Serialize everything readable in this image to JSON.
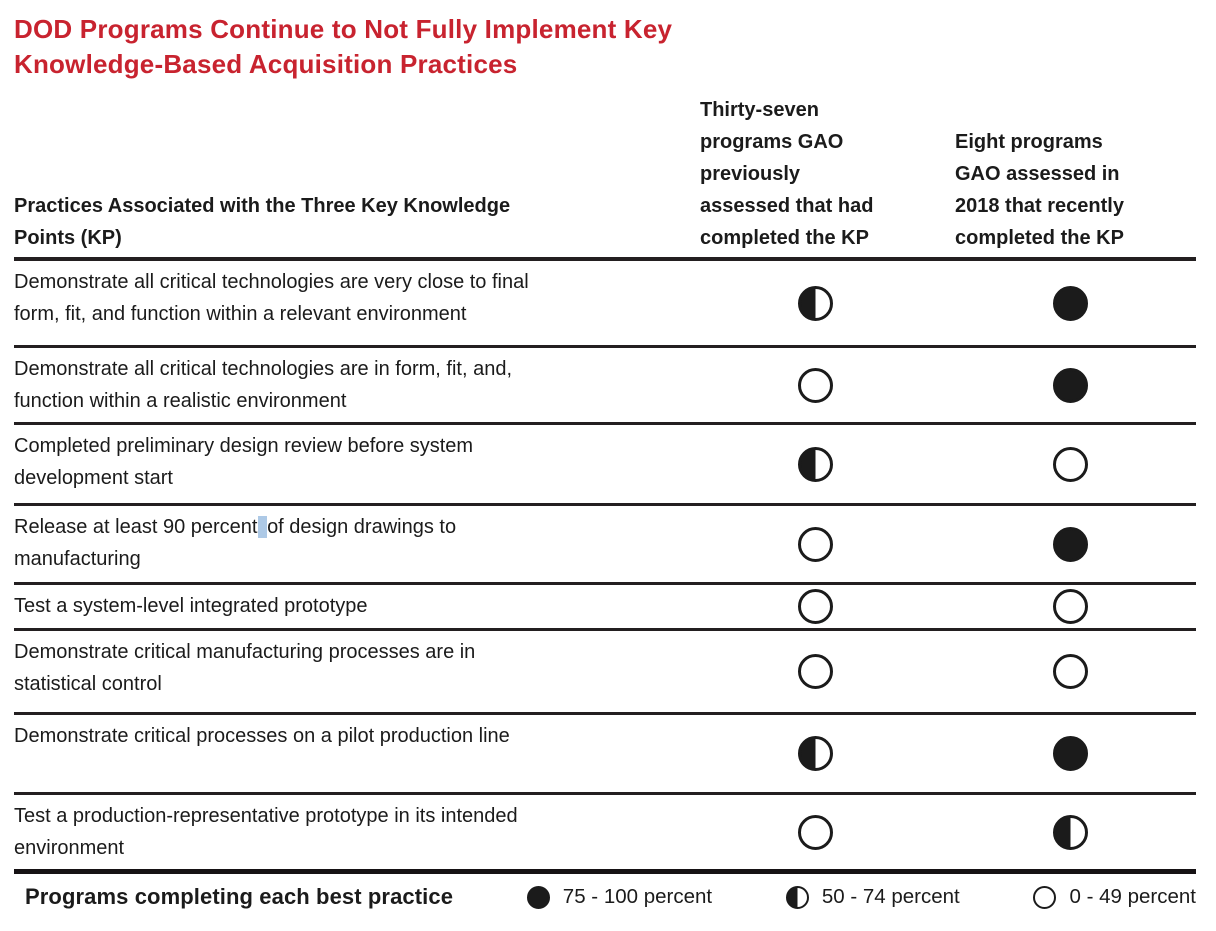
{
  "colors": {
    "title_red": "#c8232f",
    "ink": "#1b1b1b",
    "rule": "#231f20",
    "selection_highlight": "#adc9e6"
  },
  "title": "DOD Programs Continue to Not Fully Implement Key\nKnowledge-Based Acquisition Practices",
  "table": {
    "headers": {
      "practices": "Practices Associated with the Three Key Knowledge\nPoints (KP)",
      "previously_assessed": "Thirty-seven\nprograms GAO\npreviously\nassessed that had\ncompleted the KP",
      "assessed_2018": "Eight programs\nGAO assessed in\n2018 that recently\ncompleted the KP"
    },
    "symbol_legend_names": {
      "full": "filled-circle",
      "half": "half-filled-circle",
      "empty": "empty-circle"
    },
    "rows": [
      {
        "practice": "Demonstrate all critical technologies are very close to final\nform, fit, and function within a relevant environment",
        "previously_assessed": "half",
        "assessed_2018": "full"
      },
      {
        "practice": "Demonstrate all critical technologies are in form, fit, and,\nfunction within a realistic environment",
        "previously_assessed": "empty",
        "assessed_2018": "full"
      },
      {
        "practice": "Completed preliminary design review before system\ndevelopment start",
        "previously_assessed": "half",
        "assessed_2018": "empty"
      },
      {
        "practice_parts": [
          "Release at least 90 percent",
          " ",
          "of design drawings to\nmanufacturing"
        ],
        "selected_part_index": 1,
        "previously_assessed": "empty",
        "assessed_2018": "full"
      },
      {
        "practice": "Test a system-level integrated prototype",
        "previously_assessed": "empty",
        "assessed_2018": "empty"
      },
      {
        "practice": "Demonstrate critical manufacturing processes are in\nstatistical control",
        "previously_assessed": "empty",
        "assessed_2018": "empty"
      },
      {
        "practice": "Demonstrate critical processes on a pilot production line",
        "previously_assessed": "half",
        "assessed_2018": "full"
      },
      {
        "practice": "Test a production-representative prototype in its intended\nenvironment",
        "previously_assessed": "empty",
        "assessed_2018": "half"
      }
    ]
  },
  "legend": {
    "title": "Programs completing each best practice",
    "items": [
      {
        "symbol": "full",
        "label": "75 - 100 percent"
      },
      {
        "symbol": "half",
        "label": "50 - 74 percent"
      },
      {
        "symbol": "empty",
        "label": "0 - 49 percent"
      }
    ]
  }
}
